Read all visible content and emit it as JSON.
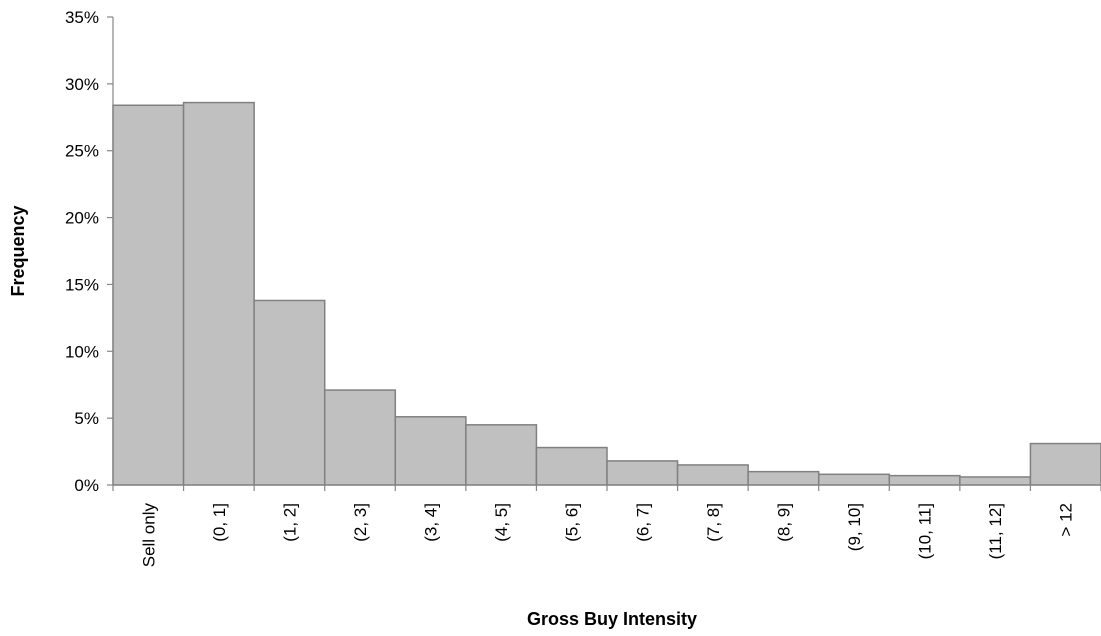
{
  "chart_data": {
    "type": "bar",
    "title": "",
    "xlabel": "Gross Buy Intensity",
    "ylabel": "Frequency",
    "categories": [
      "Sell only",
      "(0, 1]",
      "(1, 2]",
      "(2, 3]",
      "(3, 4]",
      "(4, 5]",
      "(5, 6]",
      "(6, 7]",
      "(7, 8]",
      "(8, 9]",
      "(9, 10]",
      "(10, 11]",
      "(11, 12]",
      "> 12"
    ],
    "values": [
      28.4,
      28.6,
      13.8,
      7.1,
      5.1,
      4.5,
      2.8,
      1.8,
      1.5,
      1.0,
      0.8,
      0.7,
      0.6,
      3.1
    ],
    "ylim": [
      0,
      35
    ],
    "yticks": [
      0,
      5,
      10,
      15,
      20,
      25,
      30,
      35
    ],
    "ytick_labels": [
      "0%",
      "5%",
      "10%",
      "15%",
      "20%",
      "25%",
      "30%",
      "35%"
    ],
    "grid": false,
    "legend": "none",
    "bar_fill": "#c0c0c0",
    "bar_stroke": "#808080"
  }
}
